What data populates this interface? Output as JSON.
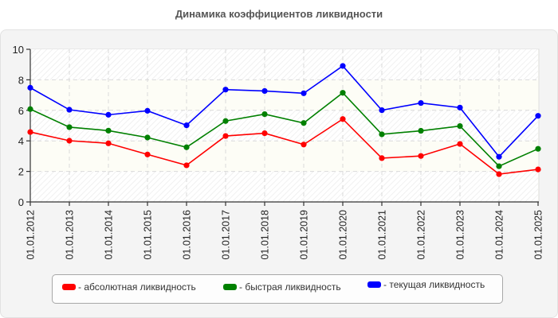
{
  "chart_data": {
    "type": "line",
    "title": "Динамика коэффициентов ликвидности",
    "xlabel": "",
    "ylabel": "",
    "ylim": [
      0,
      10
    ],
    "yticks": [
      0,
      2,
      4,
      6,
      8,
      10
    ],
    "grid": true,
    "legend_position": "bottom",
    "categories": [
      "01.01.2012",
      "01.01.2013",
      "01.01.2014",
      "01.01.2015",
      "01.01.2016",
      "01.01.2017",
      "01.01.2018",
      "01.01.2019",
      "01.01.2020",
      "01.01.2021",
      "01.01.2022",
      "01.01.2023",
      "01.01.2024",
      "01.01.2025"
    ],
    "series": [
      {
        "name": "абсолютная ликвидность",
        "color": "#ff0000",
        "values": [
          4.58,
          4.01,
          3.84,
          3.11,
          2.4,
          4.32,
          4.5,
          3.76,
          5.43,
          2.87,
          3.01,
          3.8,
          1.82,
          2.13
        ]
      },
      {
        "name": "быстрая ликвидность",
        "color": "#008000",
        "values": [
          6.08,
          4.9,
          4.67,
          4.22,
          3.58,
          5.3,
          5.75,
          5.17,
          7.15,
          4.43,
          4.66,
          4.97,
          2.34,
          3.48
        ]
      },
      {
        "name": "текущая ликвидность",
        "color": "#0000ff",
        "values": [
          7.48,
          6.04,
          5.71,
          5.97,
          5.02,
          7.36,
          7.27,
          7.12,
          8.91,
          6.01,
          6.48,
          6.18,
          2.96,
          5.64
        ]
      }
    ]
  },
  "legend": {
    "items": [
      {
        "label": "- абсолютная ликвидность",
        "color": "#ff0000"
      },
      {
        "label": "- быстрая ликвидность",
        "color": "#008000"
      },
      {
        "label": "- текущая ликвидность",
        "color": "#0000ff"
      }
    ]
  }
}
